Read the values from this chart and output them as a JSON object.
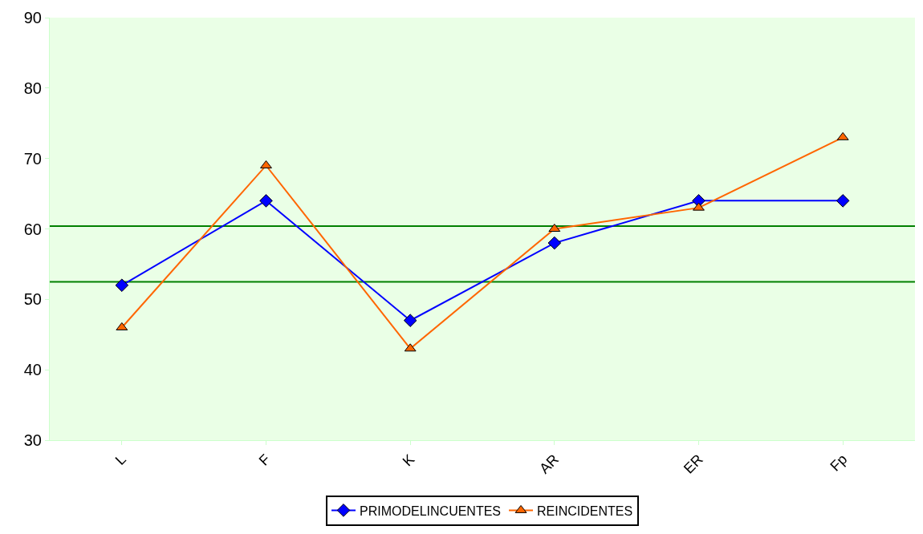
{
  "chart_data": {
    "type": "line",
    "categories": [
      "L",
      "F",
      "K",
      "AR",
      "ER",
      "Fp"
    ],
    "series": [
      {
        "name": "PRIMODELINCUENTES",
        "color": "#0000ff",
        "marker": "diamond",
        "values": [
          52,
          64,
          47,
          58,
          64,
          64
        ]
      },
      {
        "name": "REINCIDENTES",
        "color": "#ff6600",
        "marker": "triangle",
        "values": [
          46,
          69,
          43,
          60,
          63,
          73
        ]
      }
    ],
    "ylim": [
      30,
      90
    ],
    "yticks": [
      30,
      40,
      50,
      60,
      70,
      80,
      90
    ],
    "ref_lines": [
      {
        "axis": "y",
        "value": 60.4,
        "color": "#008000"
      },
      {
        "axis": "y",
        "value": 52.5,
        "color": "#008000"
      }
    ],
    "grid": false,
    "legend": "bottom",
    "line_style": "solid"
  }
}
